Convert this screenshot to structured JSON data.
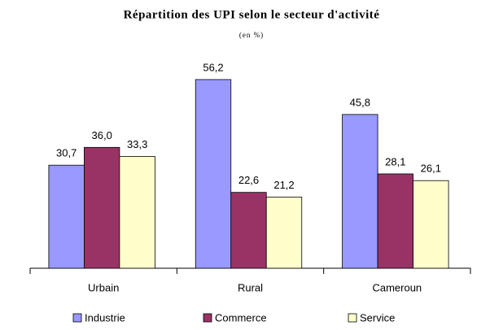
{
  "chart_data": {
    "type": "bar",
    "title": "Répartition des UPI selon le secteur d'activité",
    "subtitle": "(en %)",
    "categories": [
      "Urbain",
      "Rural",
      "Cameroun"
    ],
    "series": [
      {
        "name": "Industrie",
        "color": "#9999ff",
        "values": [
          30.7,
          56.2,
          45.8
        ],
        "value_labels": [
          "30,7",
          "56,2",
          "45,8"
        ]
      },
      {
        "name": "Commerce",
        "color": "#993366",
        "values": [
          36.0,
          22.6,
          28.1
        ],
        "value_labels": [
          "36,0",
          "22,6",
          "28,1"
        ]
      },
      {
        "name": "Service",
        "color": "#ffffcc",
        "values": [
          33.3,
          21.2,
          26.1
        ],
        "value_labels": [
          "33,3",
          "21,2",
          "26,1"
        ]
      }
    ],
    "legend": "bottom"
  }
}
